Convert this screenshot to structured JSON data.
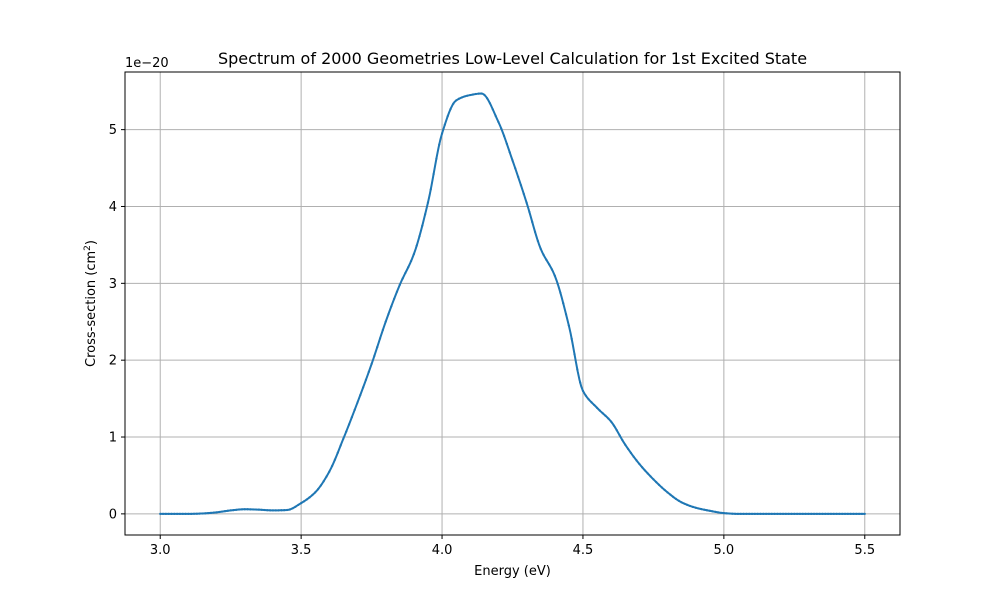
{
  "chart_data": {
    "type": "line",
    "title": "Spectrum of 2000 Geometries Low-Level Calculation for 1st Excited State",
    "xlabel": "Energy (eV)",
    "ylabel": "Cross-section (cm",
    "ylabel_sup": "2",
    "ylabel_end": ")",
    "offset_text": "1e−20",
    "xlim": [
      2.875,
      5.625
    ],
    "ylim": [
      -0.275,
      5.75
    ],
    "xticks": [
      3.0,
      3.5,
      4.0,
      4.5,
      5.0,
      5.5
    ],
    "xtick_labels": [
      "3.0",
      "3.5",
      "4.0",
      "4.5",
      "5.0",
      "5.5"
    ],
    "yticks": [
      0,
      1,
      2,
      3,
      4,
      5
    ],
    "ytick_labels": [
      "0",
      "1",
      "2",
      "3",
      "4",
      "5"
    ],
    "grid": true,
    "line_color": "#1f77b4",
    "series": [
      {
        "x": [
          3.0,
          3.05,
          3.1,
          3.15,
          3.2,
          3.25,
          3.3,
          3.35,
          3.4,
          3.45,
          3.5,
          3.55,
          3.6,
          3.65,
          3.7,
          3.75,
          3.8,
          3.85,
          3.9,
          3.95,
          4.0,
          4.05,
          4.1,
          4.14,
          4.2,
          4.25,
          4.3,
          4.35,
          4.4,
          4.45,
          4.5,
          4.55,
          4.6,
          4.65,
          4.7,
          4.75,
          4.8,
          4.85,
          4.9,
          4.95,
          5.0,
          5.05,
          5.1,
          5.2,
          5.3,
          5.4,
          5.5
        ],
        "y": [
          0.0,
          0.0,
          0.0,
          0.005,
          0.02,
          0.045,
          0.06,
          0.055,
          0.045,
          0.05,
          0.14,
          0.28,
          0.55,
          0.98,
          1.45,
          1.95,
          2.5,
          2.98,
          3.38,
          4.05,
          4.95,
          5.38,
          5.45,
          5.47,
          5.1,
          4.6,
          4.05,
          3.45,
          3.1,
          2.45,
          1.6,
          1.38,
          1.2,
          0.9,
          0.65,
          0.45,
          0.28,
          0.15,
          0.08,
          0.04,
          0.01,
          0.0,
          0.0,
          0.0,
          0.0,
          0.0,
          0.0
        ]
      }
    ]
  }
}
